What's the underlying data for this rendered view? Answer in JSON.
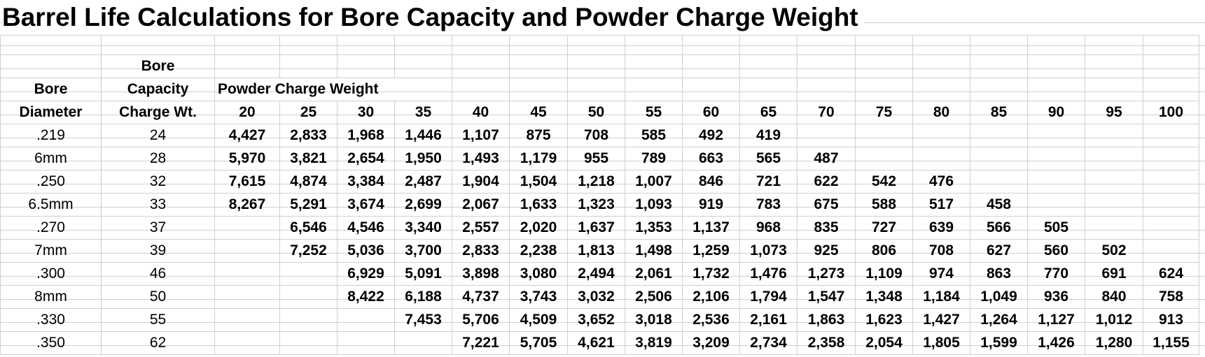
{
  "title": "Barrel Life Calculations for Bore Capacity and Powder Charge Weight",
  "headers": {
    "bore_line1": "Bore",
    "bore_line2": "Diameter",
    "cap_line1": "Bore",
    "cap_line2": "Capacity",
    "cap_line3": "Charge Wt.",
    "powder_label": "Powder Charge Weight"
  },
  "charge_weights": [
    "20",
    "25",
    "30",
    "35",
    "40",
    "45",
    "50",
    "55",
    "60",
    "65",
    "70",
    "75",
    "80",
    "85",
    "90",
    "95",
    "100"
  ],
  "rows": [
    {
      "bore": ".219",
      "capacity": "24",
      "values": [
        "4,427",
        "2,833",
        "1,968",
        "1,446",
        "1,107",
        "875",
        "708",
        "585",
        "492",
        "419",
        "",
        "",
        "",
        "",
        "",
        "",
        ""
      ]
    },
    {
      "bore": "6mm",
      "capacity": "28",
      "values": [
        "5,970",
        "3,821",
        "2,654",
        "1,950",
        "1,493",
        "1,179",
        "955",
        "789",
        "663",
        "565",
        "487",
        "",
        "",
        "",
        "",
        "",
        ""
      ]
    },
    {
      "bore": ".250",
      "capacity": "32",
      "values": [
        "7,615",
        "4,874",
        "3,384",
        "2,487",
        "1,904",
        "1,504",
        "1,218",
        "1,007",
        "846",
        "721",
        "622",
        "542",
        "476",
        "",
        "",
        "",
        ""
      ]
    },
    {
      "bore": "6.5mm",
      "capacity": "33",
      "values": [
        "8,267",
        "5,291",
        "3,674",
        "2,699",
        "2,067",
        "1,633",
        "1,323",
        "1,093",
        "919",
        "783",
        "675",
        "588",
        "517",
        "458",
        "",
        "",
        ""
      ]
    },
    {
      "bore": ".270",
      "capacity": "37",
      "values": [
        "",
        "6,546",
        "4,546",
        "3,340",
        "2,557",
        "2,020",
        "1,637",
        "1,353",
        "1,137",
        "968",
        "835",
        "727",
        "639",
        "566",
        "505",
        "",
        ""
      ]
    },
    {
      "bore": "7mm",
      "capacity": "39",
      "values": [
        "",
        "7,252",
        "5,036",
        "3,700",
        "2,833",
        "2,238",
        "1,813",
        "1,498",
        "1,259",
        "1,073",
        "925",
        "806",
        "708",
        "627",
        "560",
        "502",
        ""
      ]
    },
    {
      "bore": ".300",
      "capacity": "46",
      "values": [
        "",
        "",
        "6,929",
        "5,091",
        "3,898",
        "3,080",
        "2,494",
        "2,061",
        "1,732",
        "1,476",
        "1,273",
        "1,109",
        "974",
        "863",
        "770",
        "691",
        "624"
      ]
    },
    {
      "bore": "8mm",
      "capacity": "50",
      "values": [
        "",
        "",
        "8,422",
        "6,188",
        "4,737",
        "3,743",
        "3,032",
        "2,506",
        "2,106",
        "1,794",
        "1,547",
        "1,348",
        "1,184",
        "1,049",
        "936",
        "840",
        "758"
      ]
    },
    {
      "bore": ".330",
      "capacity": "55",
      "values": [
        "",
        "",
        "",
        "7,453",
        "5,706",
        "4,509",
        "3,652",
        "3,018",
        "2,536",
        "2,161",
        "1,863",
        "1,623",
        "1,427",
        "1,264",
        "1,127",
        "1,012",
        "913"
      ]
    },
    {
      "bore": ".350",
      "capacity": "62",
      "values": [
        "",
        "",
        "",
        "",
        "7,221",
        "5,705",
        "4,621",
        "3,819",
        "3,209",
        "2,734",
        "2,358",
        "2,054",
        "1,805",
        "1,599",
        "1,426",
        "1,280",
        "1,155"
      ]
    }
  ]
}
